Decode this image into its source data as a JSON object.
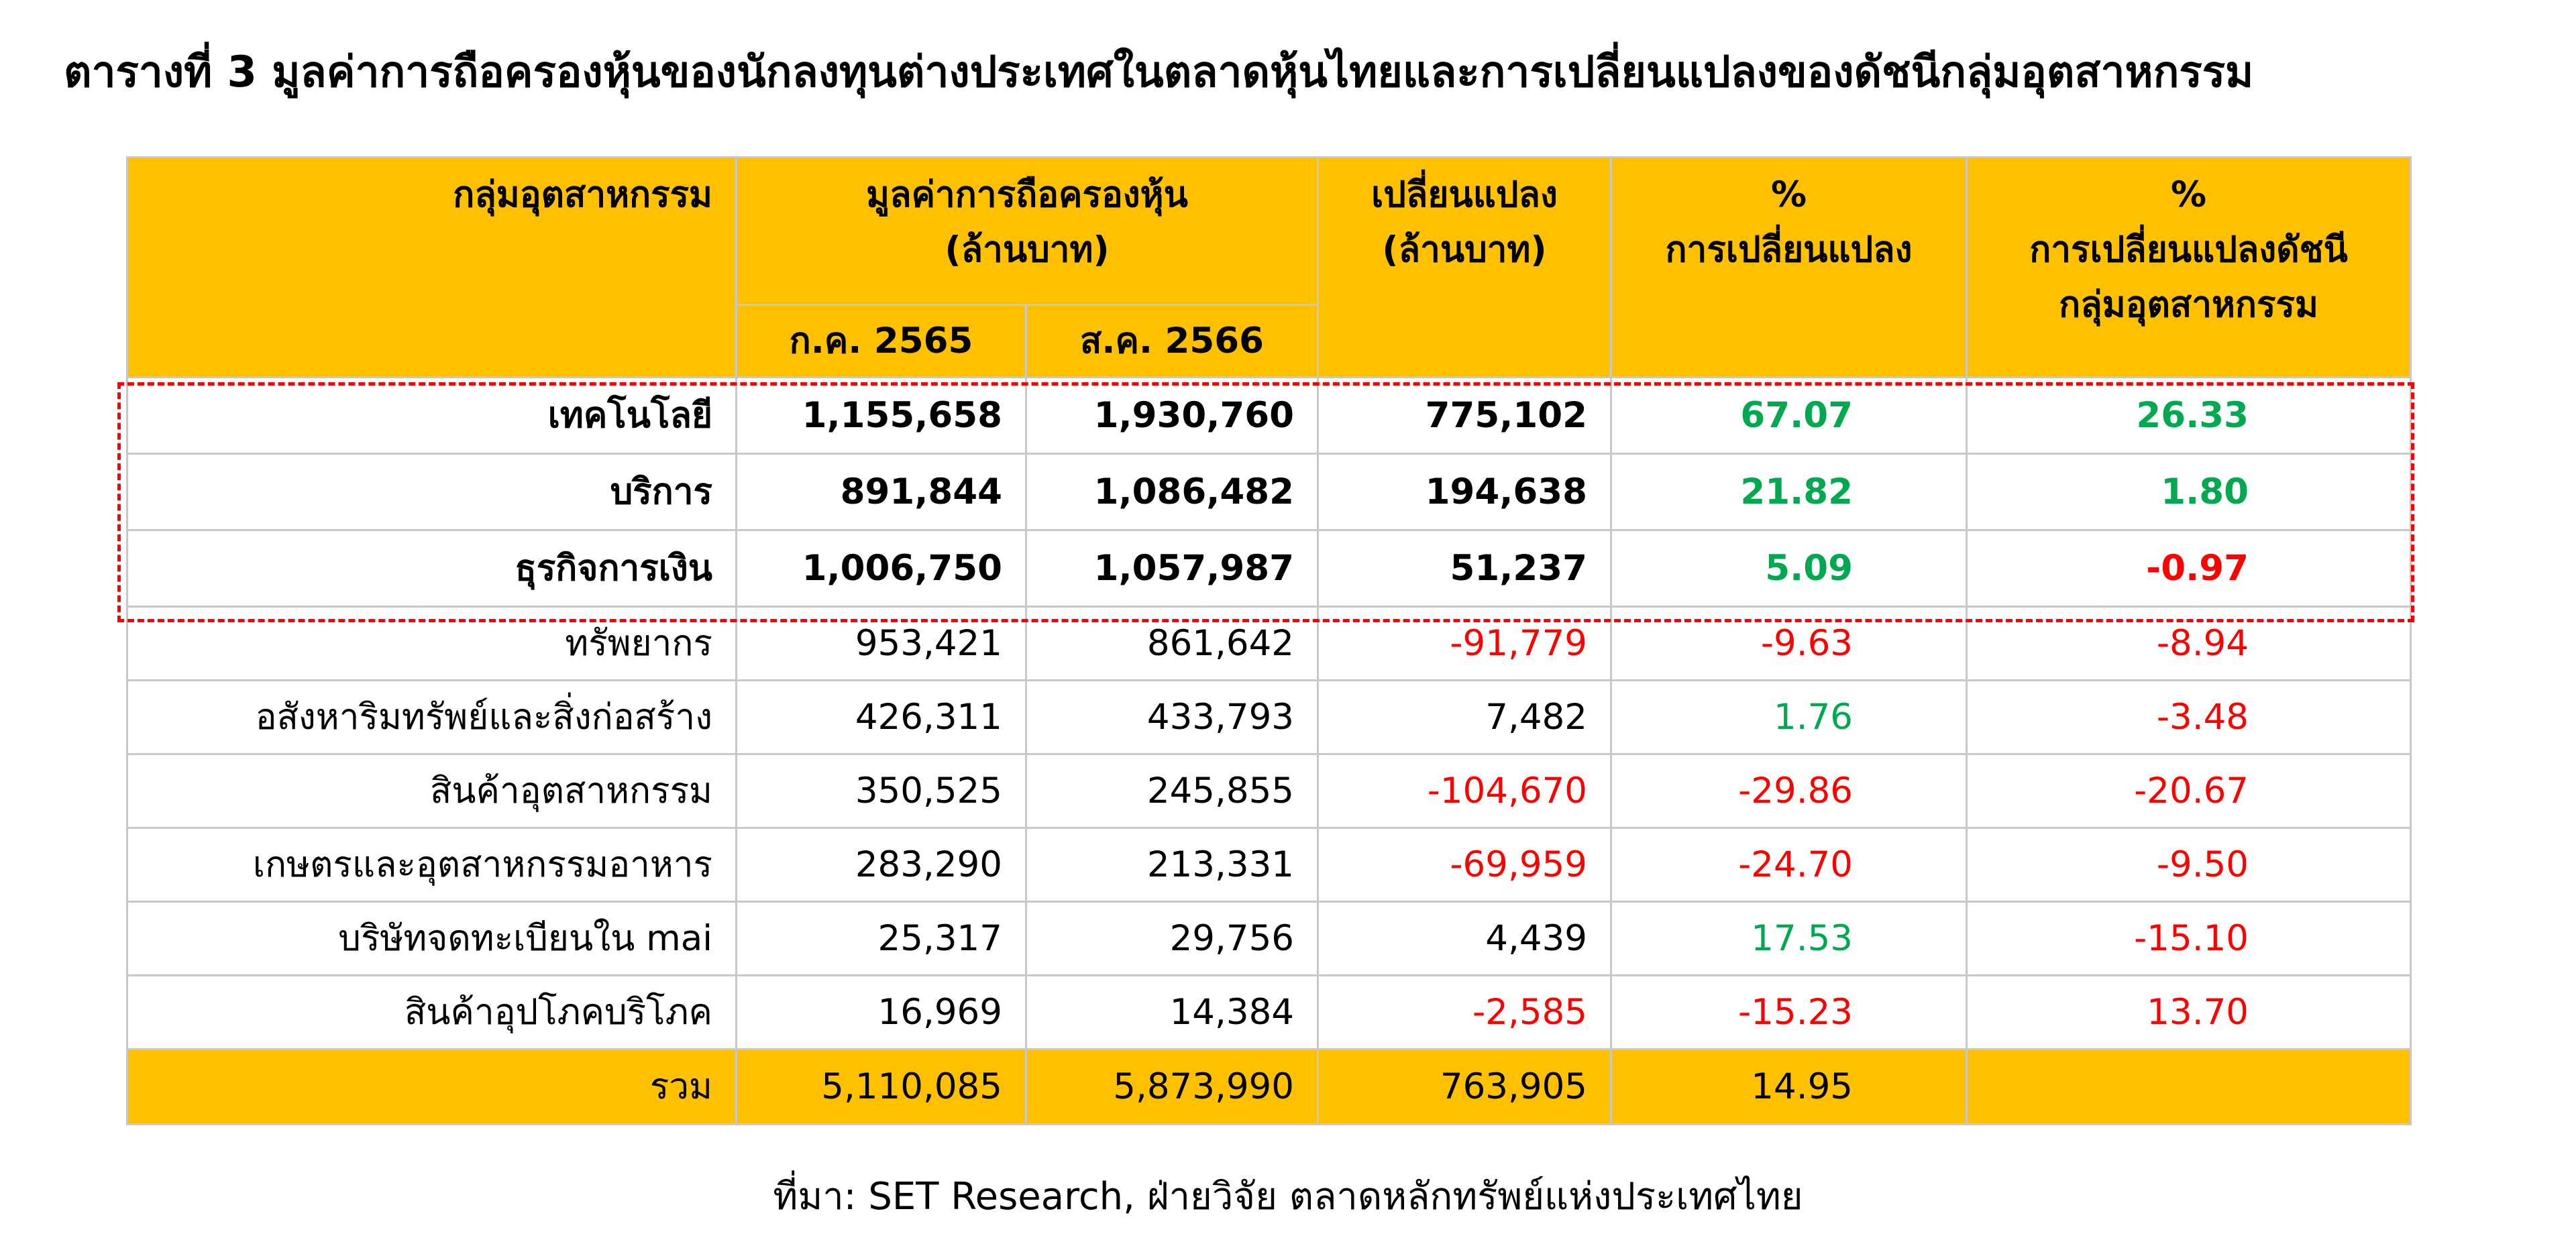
{
  "title": "ตารางที่ 3 มูลค่าการถือครองหุ้นของนักลงทุนต่างประเทศในตลาดหุ้นไทยและการเปลี่ยนแปลงของดัชนีกลุ่มอุตสาหกรรม",
  "header": {
    "sector": "กลุ่มอุตสาหกรรม",
    "holding_line1": "มูลค่าการถือครองหุ้น",
    "holding_line2": "(ล้านบาท)",
    "jul2022": "ก.ค. 2565",
    "aug2023": "ส.ค. 2566",
    "change_line1": "เปลี่ยนแปลง",
    "change_line2": "(ล้านบาท)",
    "pct_line1": "%",
    "pct_line2": "การเปลี่ยนแปลง",
    "idx_line1": "%",
    "idx_line2": "การเปลี่ยนแปลงดัชนี",
    "idx_line3": "กลุ่มอุตสาหกรรม"
  },
  "rows": [
    {
      "sector": "เทคโนโลยี",
      "jul2022": "1,155,658",
      "aug2023": "1,930,760",
      "change": "775,102",
      "pct_change": "67.07",
      "index_change": "26.33"
    },
    {
      "sector": "บริการ",
      "jul2022": "891,844",
      "aug2023": "1,086,482",
      "change": "194,638",
      "pct_change": "21.82",
      "index_change": "1.80"
    },
    {
      "sector": "ธุรกิจการเงิน",
      "jul2022": "1,006,750",
      "aug2023": "1,057,987",
      "change": "51,237",
      "pct_change": "5.09",
      "index_change": "-0.97"
    },
    {
      "sector": "ทรัพยากร",
      "jul2022": "953,421",
      "aug2023": "861,642",
      "change": "-91,779",
      "pct_change": "-9.63",
      "index_change": "-8.94"
    },
    {
      "sector": "อสังหาริมทรัพย์และสิ่งก่อสร้าง",
      "jul2022": "426,311",
      "aug2023": "433,793",
      "change": "7,482",
      "pct_change": "1.76",
      "index_change": "-3.48"
    },
    {
      "sector": "สินค้าอุตสาหกรรม",
      "jul2022": "350,525",
      "aug2023": "245,855",
      "change": "-104,670",
      "pct_change": "-29.86",
      "index_change": "-20.67"
    },
    {
      "sector": "เกษตรและอุตสาหกรรมอาหาร",
      "jul2022": "283,290",
      "aug2023": "213,331",
      "change": "-69,959",
      "pct_change": "-24.70",
      "index_change": "-9.50"
    },
    {
      "sector": "บริษัทจดทะเบียนใน mai",
      "jul2022": "25,317",
      "aug2023": "29,756",
      "change": "4,439",
      "pct_change": "17.53",
      "index_change": "-15.10"
    },
    {
      "sector": "สินค้าอุปโภคบริโภค",
      "jul2022": "16,969",
      "aug2023": "14,384",
      "change": "-2,585",
      "pct_change": "-15.23",
      "index_change": "13.70"
    }
  ],
  "total": {
    "label": "รวม",
    "jul2022": "5,110,085",
    "aug2023": "5,873,990",
    "change": "763,905",
    "pct_change": "14.95",
    "index_change": ""
  },
  "source": "ที่มา: SET Research, ฝ่ายวิจัย ตลาดหลักทรัพย์แห่งประเทศไทย",
  "colors": {
    "header_bg": "#ffc000",
    "positive": "#00a94f",
    "negative": "#ff0000",
    "highlight_border": "#ff0000",
    "grid": "#c8c8c8"
  }
}
